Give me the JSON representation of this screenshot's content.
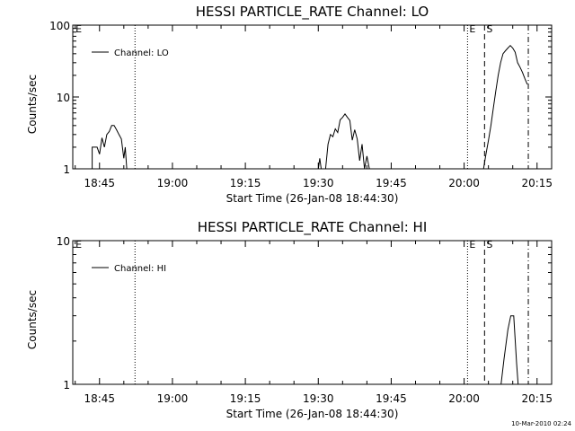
{
  "footer": {
    "stamp": "10-Mar-2010 02:24"
  },
  "chart_data": [
    {
      "type": "line",
      "title": "HESSI PARTICLE_RATE Channel: LO",
      "xlabel": "Start Time (26-Jan-08 18:44:30)",
      "ylabel": "Counts/sec",
      "yscale": "log",
      "ylim": [
        1,
        100
      ],
      "xlim_minutes": [
        -5.5,
        93
      ],
      "x_ticks": [
        {
          "min": 0,
          "label": "18:45"
        },
        {
          "min": 15,
          "label": "19:00"
        },
        {
          "min": 30,
          "label": "19:15"
        },
        {
          "min": 45,
          "label": "19:30"
        },
        {
          "min": 60,
          "label": "19:45"
        },
        {
          "min": 75,
          "label": "20:00"
        },
        {
          "min": 90,
          "label": "20:15"
        }
      ],
      "y_ticks": [
        {
          "v": 1,
          "label": "1"
        },
        {
          "v": 10,
          "label": "10"
        },
        {
          "v": 100,
          "label": "100"
        }
      ],
      "legend_location": "top-left",
      "series": [
        {
          "name": "Channel: LO",
          "segments": [
            [
              [
                -1.5,
                1
              ],
              [
                -1.5,
                2
              ],
              [
                -0.5,
                2
              ],
              [
                0,
                1.6
              ],
              [
                0.5,
                2.7
              ],
              [
                1,
                2
              ],
              [
                1.5,
                3
              ],
              [
                2,
                3.3
              ],
              [
                2.5,
                4
              ],
              [
                3,
                4
              ],
              [
                3.5,
                3.5
              ],
              [
                4,
                3
              ],
              [
                4.5,
                2.6
              ],
              [
                5,
                1.4
              ],
              [
                5.3,
                2
              ],
              [
                5.6,
                1
              ]
            ],
            [
              [
                45,
                1
              ],
              [
                45.3,
                1.4
              ],
              [
                45.6,
                1
              ],
              [
                46.5,
                1
              ],
              [
                47,
                2.2
              ],
              [
                47.5,
                3
              ],
              [
                48,
                2.8
              ],
              [
                48.5,
                3.6
              ],
              [
                49,
                3.2
              ],
              [
                49.5,
                4.8
              ],
              [
                50,
                5.2
              ],
              [
                50.5,
                5.8
              ],
              [
                51,
                5.2
              ],
              [
                51.5,
                4.7
              ],
              [
                52,
                2.5
              ],
              [
                52.5,
                3.5
              ],
              [
                53,
                2.6
              ],
              [
                53.5,
                1.3
              ],
              [
                54,
                2.2
              ],
              [
                54.5,
                1
              ],
              [
                55,
                1.5
              ],
              [
                55.5,
                1
              ]
            ],
            [
              [
                79,
                1
              ],
              [
                79.5,
                1.6
              ],
              [
                80,
                2.5
              ],
              [
                80.5,
                4
              ],
              [
                81,
                7
              ],
              [
                81.5,
                12
              ],
              [
                82,
                20
              ],
              [
                82.5,
                30
              ],
              [
                83,
                40
              ],
              [
                83.5,
                44
              ],
              [
                84,
                48
              ],
              [
                84.5,
                52
              ],
              [
                85,
                48
              ],
              [
                85.5,
                42
              ],
              [
                86,
                30
              ],
              [
                86.5,
                26
              ],
              [
                87,
                22
              ],
              [
                87.5,
                18
              ],
              [
                88,
                15
              ]
            ]
          ]
        }
      ],
      "markers": [
        {
          "min": -5.3,
          "label": "E",
          "style": "none"
        },
        {
          "min": 7.3,
          "label": "",
          "style": "dotted"
        },
        {
          "min": 75.7,
          "label": "E",
          "style": "dotted"
        },
        {
          "min": 79.2,
          "label": "S",
          "style": "dashed"
        },
        {
          "min": 88.2,
          "label": "",
          "style": "dashdot"
        }
      ]
    },
    {
      "type": "line",
      "title": "HESSI PARTICLE_RATE Channel: HI",
      "xlabel": "Start Time (26-Jan-08 18:44:30)",
      "ylabel": "Counts/sec",
      "yscale": "log",
      "ylim": [
        1,
        10
      ],
      "xlim_minutes": [
        -5.5,
        93
      ],
      "x_ticks": [
        {
          "min": 0,
          "label": "18:45"
        },
        {
          "min": 15,
          "label": "19:00"
        },
        {
          "min": 30,
          "label": "19:15"
        },
        {
          "min": 45,
          "label": "19:30"
        },
        {
          "min": 60,
          "label": "19:45"
        },
        {
          "min": 75,
          "label": "20:00"
        },
        {
          "min": 90,
          "label": "20:15"
        }
      ],
      "y_ticks": [
        {
          "v": 1,
          "label": "1"
        },
        {
          "v": 10,
          "label": "10"
        }
      ],
      "legend_location": "top-left",
      "series": [
        {
          "name": "Channel: HI",
          "segments": [
            [
              [
                82.6,
                1
              ],
              [
                83.2,
                1.5
              ],
              [
                84,
                2.4
              ],
              [
                84.6,
                3
              ],
              [
                85.2,
                3
              ],
              [
                85.8,
                1.4
              ],
              [
                86.1,
                1
              ]
            ]
          ]
        }
      ],
      "markers": [
        {
          "min": -5.3,
          "label": "E",
          "style": "none"
        },
        {
          "min": 7.3,
          "label": "",
          "style": "dotted"
        },
        {
          "min": 75.7,
          "label": "E",
          "style": "dotted"
        },
        {
          "min": 79.2,
          "label": "S",
          "style": "dashed"
        },
        {
          "min": 88.2,
          "label": "",
          "style": "dashdot"
        }
      ]
    }
  ]
}
